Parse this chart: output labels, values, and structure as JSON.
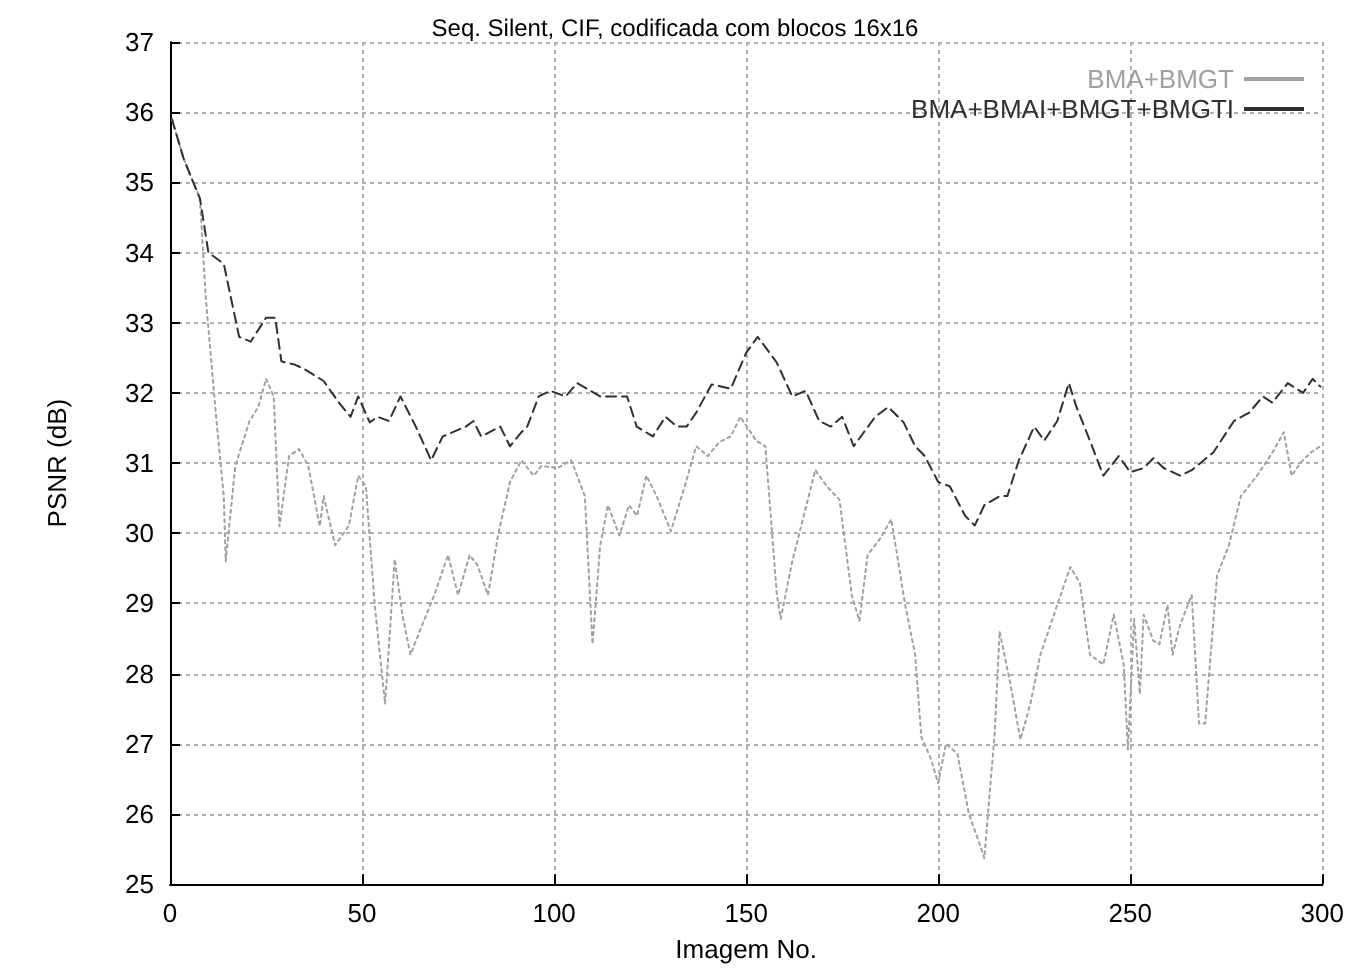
{
  "chart_data": {
    "type": "line",
    "title": "Seq. Silent, CIF, codificada com blocos 16x16",
    "xlabel": "Imagem No.",
    "ylabel": "PSNR (dB)",
    "xlim": [
      0,
      300
    ],
    "xticks": [
      0,
      50,
      100,
      150,
      200,
      250,
      300
    ],
    "ylim": [
      25,
      37
    ],
    "yticks": [
      25,
      26,
      27,
      28,
      29,
      30,
      31,
      32,
      33,
      34,
      35,
      36,
      37
    ],
    "grid": true,
    "legend": "top right",
    "marker": "none",
    "series": [
      {
        "name": "BMA+BMGT",
        "color": "#a0a0a0",
        "line_style": "dotted",
        "x": [
          0.5,
          3.6,
          7.8,
          9.3,
          12,
          14,
          14.5,
          17,
          20.7,
          23,
          25,
          27,
          28.5,
          31,
          33.6,
          36,
          39,
          40,
          43,
          46.6,
          49,
          51,
          53.3,
          56,
          58.5,
          60.5,
          62.6,
          65.7,
          68.8,
          72.4,
          75,
          78,
          80,
          82.8,
          85.4,
          88.5,
          91.5,
          94.7,
          96.7,
          100.9,
          104.5,
          106,
          108,
          110,
          112,
          114,
          117,
          119.5,
          121.6,
          124,
          126.7,
          130.4,
          134,
          137,
          140,
          143,
          146,
          148.5,
          152.6,
          155,
          158,
          159,
          162,
          168,
          171,
          174.3,
          177.5,
          179.5,
          181.6,
          184.7,
          187.8,
          191.4,
          194,
          195.6,
          198,
          200,
          202,
          205,
          208,
          211,
          212,
          214.7,
          216,
          218.8,
          221.4,
          224,
          226.6,
          231,
          234.4,
          236.9,
          239.5,
          243,
          245.7,
          248.3,
          249.4,
          251,
          252.5,
          253.5,
          256,
          257.6,
          259.7,
          261,
          263,
          266,
          267.9,
          269.5,
          272.6,
          275.7,
          278.8,
          283,
          287,
          290,
          292,
          294.4,
          297,
          299.5
        ],
        "values": [
          35.9,
          35.33,
          34.77,
          33.36,
          31.66,
          30.53,
          29.6,
          30.96,
          31.6,
          31.8,
          32.2,
          31.95,
          30.1,
          31.1,
          31.2,
          30.96,
          30.1,
          30.53,
          29.83,
          30.11,
          30.82,
          30.67,
          28.98,
          27.57,
          29.63,
          28.84,
          28.27,
          28.7,
          29.12,
          29.69,
          29.12,
          29.69,
          29.55,
          29.12,
          29.97,
          30.73,
          31.04,
          30.82,
          30.96,
          30.93,
          31.04,
          30.82,
          30.53,
          28.42,
          29.83,
          30.4,
          29.97,
          30.4,
          30.25,
          30.82,
          30.53,
          30.03,
          30.67,
          31.24,
          31.1,
          31.3,
          31.38,
          31.66,
          31.32,
          31.24,
          29.12,
          28.78,
          29.6,
          30.9,
          30.67,
          30.48,
          29.12,
          28.75,
          29.69,
          29.91,
          30.2,
          28.98,
          28.27,
          27.1,
          26.8,
          26.44,
          27.0,
          26.86,
          26.0,
          25.54,
          25.37,
          27.15,
          28.6,
          27.85,
          27.06,
          27.57,
          28.27,
          28.98,
          29.52,
          29.29,
          28.27,
          28.13,
          28.84,
          28.13,
          26.92,
          28.78,
          27.71,
          28.84,
          28.47,
          28.42,
          28.98,
          28.27,
          28.7,
          29.12,
          27.29,
          27.29,
          29.4,
          29.83,
          30.53,
          30.82,
          31.15,
          31.44,
          30.82,
          31.01,
          31.15,
          31.24
        ]
      },
      {
        "name": "BMA+BMAI+BMGT+BMGTI",
        "color": "#303030",
        "line_style": "dashed",
        "x": [
          0.5,
          3.6,
          7.8,
          10,
          14,
          18,
          21,
          25,
          27.4,
          29,
          32.6,
          35,
          40,
          44,
          47,
          49,
          52,
          54,
          57,
          60,
          64,
          68,
          71,
          77,
          79,
          81,
          86,
          88.5,
          91.5,
          93,
          96,
          99,
          103,
          106,
          112,
          119,
          121.5,
          125.7,
          129,
          132,
          134.5,
          137,
          141,
          146,
          150,
          153,
          158,
          162,
          165.5,
          169,
          172,
          175,
          178,
          183.6,
          187,
          191,
          194,
          196.5,
          200,
          203,
          207,
          209.5,
          212,
          216,
          218,
          221,
          225,
          227.6,
          231,
          234,
          236,
          239.5,
          243,
          247,
          250,
          253.5,
          256,
          258.7,
          263,
          266,
          271.6,
          277,
          281,
          284.5,
          287,
          291,
          295,
          297.5,
          299.5
        ],
        "values": [
          35.9,
          35.33,
          34.77,
          34.0,
          33.84,
          32.8,
          32.73,
          33.07,
          33.07,
          32.45,
          32.4,
          32.34,
          32.17,
          31.86,
          31.66,
          31.95,
          31.58,
          31.66,
          31.6,
          31.95,
          31.52,
          31.04,
          31.38,
          31.52,
          31.6,
          31.38,
          31.52,
          31.24,
          31.44,
          31.52,
          31.95,
          32.03,
          31.95,
          32.14,
          31.95,
          31.95,
          31.52,
          31.38,
          31.66,
          31.52,
          31.52,
          31.72,
          32.12,
          32.06,
          32.57,
          32.8,
          32.43,
          31.95,
          32.03,
          31.6,
          31.52,
          31.66,
          31.24,
          31.66,
          31.8,
          31.58,
          31.24,
          31.1,
          30.73,
          30.67,
          30.25,
          30.11,
          30.4,
          30.53,
          30.53,
          31.04,
          31.52,
          31.32,
          31.6,
          32.14,
          31.8,
          31.32,
          30.82,
          31.1,
          30.87,
          30.93,
          31.07,
          30.93,
          30.82,
          30.9,
          31.15,
          31.6,
          31.72,
          31.95,
          31.86,
          32.14,
          32.0,
          32.2,
          32.09
        ]
      }
    ]
  }
}
